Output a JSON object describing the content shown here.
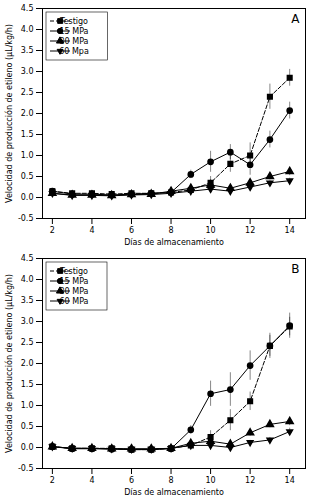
{
  "chart_data": [
    {
      "type": "line",
      "annotations": [
        "A"
      ],
      "xlabel": "Días de almacenamiento",
      "ylabel": "Velocidad de producción de etileno (μL/kg/h)",
      "x": [
        2,
        3,
        4,
        5,
        6,
        7,
        8,
        9,
        10,
        11,
        12,
        13,
        14
      ],
      "xlim": [
        1.5,
        14.8
      ],
      "xticks": [
        2,
        4,
        6,
        8,
        10,
        12,
        14
      ],
      "ylim": [
        -0.5,
        4.5
      ],
      "yticks": [
        -0.5,
        {
          "value": 0,
          "label": "0.0"
        },
        0.5,
        {
          "value": 1,
          "label": "1.0"
        },
        1.5,
        {
          "value": 2,
          "label": "2.0"
        },
        2.5,
        {
          "value": 3,
          "label": "3.0"
        },
        3.5,
        {
          "value": 4,
          "label": "4.0"
        },
        4.5
      ],
      "grid": false,
      "legend": "upper left",
      "series": [
        {
          "name": "Testigo",
          "color": "#000000",
          "marker": "square",
          "line_style": "dashed",
          "values": [
            0.15,
            0.1,
            0.1,
            0.08,
            0.1,
            0.1,
            0.12,
            0.18,
            0.35,
            0.8,
            1.0,
            2.4,
            2.85
          ],
          "yerr": [
            0.05,
            0.03,
            0.03,
            0.02,
            0.03,
            0.03,
            0.04,
            0.08,
            0.15,
            0.2,
            0.3,
            0.3,
            0.2
          ]
        },
        {
          "name": "15 MPa",
          "color": "#000000",
          "marker": "circle",
          "line_style": "solid",
          "values": [
            0.15,
            0.08,
            0.08,
            0.06,
            0.08,
            0.1,
            0.12,
            0.55,
            0.85,
            1.08,
            0.78,
            1.38,
            2.07
          ],
          "yerr": [
            0.05,
            0.03,
            0.03,
            0.02,
            0.03,
            0.05,
            0.05,
            0.1,
            0.25,
            0.18,
            0.25,
            0.2,
            0.2
          ]
        },
        {
          "name": "30 MPa",
          "color": "#000000",
          "marker": "triangle-up",
          "line_style": "solid",
          "values": [
            0.1,
            0.06,
            0.06,
            0.05,
            0.07,
            0.08,
            0.15,
            0.22,
            0.3,
            0.22,
            0.35,
            0.5,
            0.62
          ],
          "yerr": [
            0.04,
            0.02,
            0.02,
            0.02,
            0.02,
            0.03,
            0.04,
            0.05,
            0.08,
            0.05,
            0.06,
            0.08,
            0.1
          ]
        },
        {
          "name": "60 Mpa",
          "color": "#000000",
          "marker": "triangle-down",
          "line_style": "solid",
          "values": [
            0.1,
            0.05,
            0.05,
            0.04,
            0.06,
            0.07,
            0.1,
            0.15,
            0.2,
            0.15,
            0.25,
            0.35,
            0.4
          ],
          "yerr": [
            0.03,
            0.02,
            0.02,
            0.01,
            0.02,
            0.02,
            0.03,
            0.04,
            0.05,
            0.04,
            0.05,
            0.05,
            0.06
          ]
        }
      ]
    },
    {
      "type": "line",
      "annotations": [
        "B"
      ],
      "xlabel": "Días de almacenamiento",
      "ylabel": "Velocidad de producción de etileno (μL/kg/h)",
      "x": [
        2,
        3,
        4,
        5,
        6,
        7,
        8,
        9,
        10,
        11,
        12,
        13,
        14
      ],
      "xlim": [
        1.5,
        14.8
      ],
      "xticks": [
        2,
        4,
        6,
        8,
        10,
        12,
        14
      ],
      "ylim": [
        -0.5,
        4.5
      ],
      "yticks": [
        -0.5,
        {
          "value": 0,
          "label": "0.0"
        },
        0.5,
        {
          "value": 1,
          "label": "1.0"
        },
        1.5,
        {
          "value": 2,
          "label": "2.0"
        },
        2.5,
        {
          "value": 3,
          "label": "3.0"
        },
        3.5,
        {
          "value": 4,
          "label": "4.0"
        },
        4.5
      ],
      "grid": false,
      "legend": "upper left",
      "series": [
        {
          "name": "Testigo",
          "color": "#000000",
          "marker": "square",
          "line_style": "dashed",
          "values": [
            0.02,
            -0.02,
            -0.02,
            -0.02,
            -0.05,
            -0.05,
            -0.02,
            0.05,
            0.25,
            0.65,
            1.1,
            2.42,
            2.88
          ],
          "yerr": [
            0.04,
            0.03,
            0.03,
            0.03,
            0.03,
            0.03,
            0.05,
            0.1,
            0.15,
            0.25,
            0.22,
            0.25,
            0.22
          ]
        },
        {
          "name": "15 MPa",
          "color": "#000000",
          "marker": "circle",
          "line_style": "solid",
          "values": [
            0.02,
            -0.03,
            -0.03,
            -0.04,
            -0.05,
            -0.05,
            -0.03,
            0.42,
            1.28,
            1.38,
            1.95,
            2.42,
            2.9
          ],
          "yerr": [
            0.03,
            0.03,
            0.03,
            0.03,
            0.04,
            0.04,
            0.08,
            0.1,
            0.3,
            0.4,
            0.35,
            0.3,
            0.3
          ]
        },
        {
          "name": "30 MPa",
          "color": "#000000",
          "marker": "triangle-up",
          "line_style": "solid",
          "values": [
            0.02,
            -0.02,
            -0.02,
            -0.03,
            -0.03,
            -0.03,
            -0.02,
            0.1,
            0.15,
            0.08,
            0.35,
            0.55,
            0.62
          ],
          "yerr": [
            0.03,
            0.02,
            0.02,
            0.02,
            0.02,
            0.02,
            0.03,
            0.05,
            0.06,
            0.05,
            0.08,
            0.08,
            0.1
          ]
        },
        {
          "name": "60 MPa",
          "color": "#000000",
          "marker": "triangle-down",
          "line_style": "solid",
          "values": [
            0.02,
            -0.02,
            -0.02,
            -0.03,
            -0.04,
            -0.04,
            -0.02,
            0.05,
            0.05,
            0.0,
            0.12,
            0.18,
            0.38
          ],
          "yerr": [
            0.02,
            0.02,
            0.02,
            0.02,
            0.03,
            0.03,
            0.02,
            0.04,
            0.04,
            0.04,
            0.05,
            0.06,
            0.08
          ]
        }
      ]
    }
  ]
}
